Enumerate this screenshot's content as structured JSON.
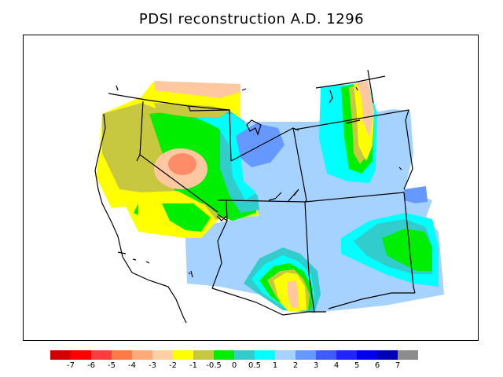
{
  "title": "PDSI reconstruction A.D. 1296",
  "colorbar": {
    "colors": [
      "#d40000",
      "#ff0000",
      "#ff3d3d",
      "#ff7a45",
      "#ffa878",
      "#ffcfa6",
      "#ffff00",
      "#c8c840",
      "#00ee00",
      "#33cccc",
      "#00ffff",
      "#a6d2ff",
      "#6699ff",
      "#3c5cff",
      "#2323ff",
      "#0000ee",
      "#0000b8",
      "#8c8c8c"
    ],
    "tick_labels": [
      "-7",
      "-6",
      "-5",
      "-4",
      "-3",
      "-2",
      "-1",
      "-0.5",
      "0",
      "0.5",
      "1",
      "2",
      "3",
      "4",
      "5",
      "6",
      "7"
    ]
  },
  "palette": {
    "salmon": "#ff8c69",
    "peach": "#ffc8a0",
    "yellow": "#ffff00",
    "olive": "#c8c840",
    "green": "#00ee00",
    "teal": "#33cccc",
    "cyan": "#00ffff",
    "lightblue": "#a6d2ff",
    "blue": "#6699ff",
    "darkblue": "#3c5cff"
  }
}
